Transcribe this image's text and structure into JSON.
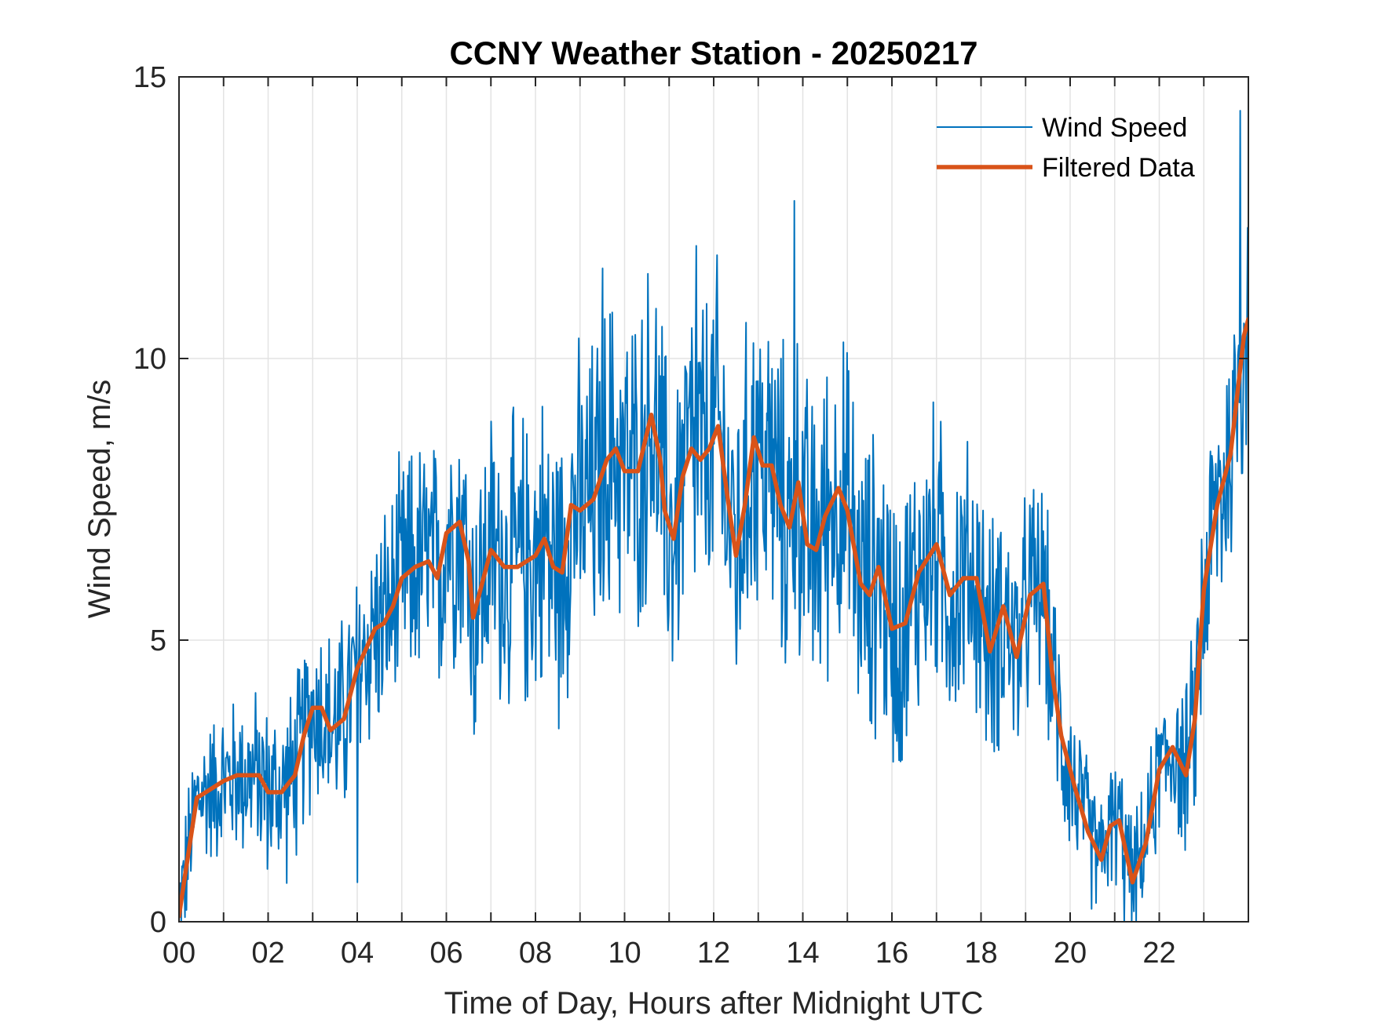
{
  "chart_data": {
    "type": "line",
    "title": "CCNY Weather Station - 20250217",
    "xlabel": "Time of Day, Hours after Midnight UTC",
    "ylabel": "Wind Speed, m/s",
    "xlim": [
      0,
      24
    ],
    "ylim": [
      0,
      15
    ],
    "xticks": [
      0,
      2,
      4,
      6,
      8,
      10,
      12,
      14,
      16,
      18,
      20,
      22
    ],
    "xtick_labels": [
      "00",
      "02",
      "04",
      "06",
      "08",
      "10",
      "12",
      "14",
      "16",
      "18",
      "20",
      "22"
    ],
    "xminor_ticks": [
      1,
      3,
      5,
      7,
      9,
      11,
      13,
      15,
      17,
      19,
      21,
      23
    ],
    "yticks": [
      0,
      5,
      10,
      15
    ],
    "ytick_labels": [
      "0",
      "5",
      "10",
      "15"
    ],
    "grid": true,
    "legend": {
      "position": "top-right",
      "entries": [
        "Wind Speed",
        "Filtered Data"
      ]
    },
    "series": [
      {
        "name": "Wind Speed",
        "color": "#0072BD",
        "style": "thin-line",
        "description": "Raw 1-minute-ish samples, noisy around filtered curve",
        "noise_amplitude": [
          [
            0,
            1.0
          ],
          [
            2,
            1.3
          ],
          [
            4,
            1.6
          ],
          [
            6,
            2.0
          ],
          [
            9,
            2.4
          ],
          [
            12,
            2.5
          ],
          [
            15,
            2.4
          ],
          [
            18,
            2.0
          ],
          [
            19.5,
            1.6
          ],
          [
            20.5,
            1.0
          ],
          [
            21.5,
            0.9
          ],
          [
            22.5,
            1.2
          ],
          [
            23,
            1.8
          ],
          [
            24,
            2.2
          ]
        ],
        "notable_points": [
          {
            "x": 13.8,
            "y": 12.8
          },
          {
            "x": 11.6,
            "y": 12.0
          },
          {
            "x": 9.5,
            "y": 11.6
          },
          {
            "x": 23.8,
            "y": 14.4
          },
          {
            "x": 21.2,
            "y": 0.0
          },
          {
            "x": 4.0,
            "y": 0.7
          }
        ]
      },
      {
        "name": "Filtered Data",
        "color": "#D95319",
        "style": "thick-line",
        "points": [
          [
            0.0,
            0.1
          ],
          [
            0.15,
            0.9
          ],
          [
            0.4,
            2.2
          ],
          [
            0.6,
            2.3
          ],
          [
            1.0,
            2.5
          ],
          [
            1.3,
            2.6
          ],
          [
            1.7,
            2.6
          ],
          [
            1.8,
            2.6
          ],
          [
            2.0,
            2.3
          ],
          [
            2.3,
            2.3
          ],
          [
            2.6,
            2.6
          ],
          [
            2.8,
            3.3
          ],
          [
            3.0,
            3.8
          ],
          [
            3.2,
            3.8
          ],
          [
            3.4,
            3.4
          ],
          [
            3.7,
            3.6
          ],
          [
            4.0,
            4.5
          ],
          [
            4.4,
            5.2
          ],
          [
            4.6,
            5.3
          ],
          [
            4.8,
            5.6
          ],
          [
            5.0,
            6.1
          ],
          [
            5.3,
            6.3
          ],
          [
            5.6,
            6.4
          ],
          [
            5.8,
            6.1
          ],
          [
            6.0,
            6.9
          ],
          [
            6.3,
            7.1
          ],
          [
            6.5,
            6.4
          ],
          [
            6.6,
            5.4
          ],
          [
            6.8,
            6.0
          ],
          [
            7.0,
            6.6
          ],
          [
            7.3,
            6.3
          ],
          [
            7.6,
            6.3
          ],
          [
            8.0,
            6.5
          ],
          [
            8.2,
            6.8
          ],
          [
            8.4,
            6.3
          ],
          [
            8.6,
            6.2
          ],
          [
            8.8,
            7.4
          ],
          [
            9.0,
            7.3
          ],
          [
            9.3,
            7.5
          ],
          [
            9.6,
            8.2
          ],
          [
            9.8,
            8.4
          ],
          [
            10.0,
            8.0
          ],
          [
            10.3,
            8.0
          ],
          [
            10.6,
            9.0
          ],
          [
            10.8,
            8.2
          ],
          [
            10.9,
            7.3
          ],
          [
            11.1,
            6.8
          ],
          [
            11.3,
            7.9
          ],
          [
            11.5,
            8.4
          ],
          [
            11.7,
            8.2
          ],
          [
            11.9,
            8.4
          ],
          [
            12.1,
            8.8
          ],
          [
            12.3,
            7.6
          ],
          [
            12.5,
            6.5
          ],
          [
            12.7,
            7.4
          ],
          [
            12.9,
            8.6
          ],
          [
            13.1,
            8.1
          ],
          [
            13.3,
            8.1
          ],
          [
            13.5,
            7.4
          ],
          [
            13.7,
            7.0
          ],
          [
            13.9,
            7.8
          ],
          [
            14.1,
            6.7
          ],
          [
            14.3,
            6.6
          ],
          [
            14.5,
            7.2
          ],
          [
            14.8,
            7.7
          ],
          [
            15.0,
            7.3
          ],
          [
            15.3,
            6.0
          ],
          [
            15.5,
            5.8
          ],
          [
            15.7,
            6.3
          ],
          [
            16.0,
            5.2
          ],
          [
            16.3,
            5.3
          ],
          [
            16.6,
            6.2
          ],
          [
            17.0,
            6.7
          ],
          [
            17.3,
            5.8
          ],
          [
            17.6,
            6.1
          ],
          [
            17.9,
            6.1
          ],
          [
            18.2,
            4.8
          ],
          [
            18.5,
            5.6
          ],
          [
            18.8,
            4.7
          ],
          [
            19.1,
            5.8
          ],
          [
            19.4,
            6.0
          ],
          [
            19.6,
            4.4
          ],
          [
            19.8,
            3.3
          ],
          [
            20.1,
            2.4
          ],
          [
            20.4,
            1.6
          ],
          [
            20.7,
            1.1
          ],
          [
            20.9,
            1.7
          ],
          [
            21.1,
            1.8
          ],
          [
            21.4,
            0.7
          ],
          [
            21.7,
            1.4
          ],
          [
            22.0,
            2.7
          ],
          [
            22.3,
            3.1
          ],
          [
            22.6,
            2.6
          ],
          [
            22.8,
            3.6
          ],
          [
            23.0,
            5.9
          ],
          [
            23.3,
            7.4
          ],
          [
            23.6,
            8.3
          ],
          [
            23.9,
            10.4
          ],
          [
            24.0,
            10.7
          ]
        ]
      }
    ]
  }
}
